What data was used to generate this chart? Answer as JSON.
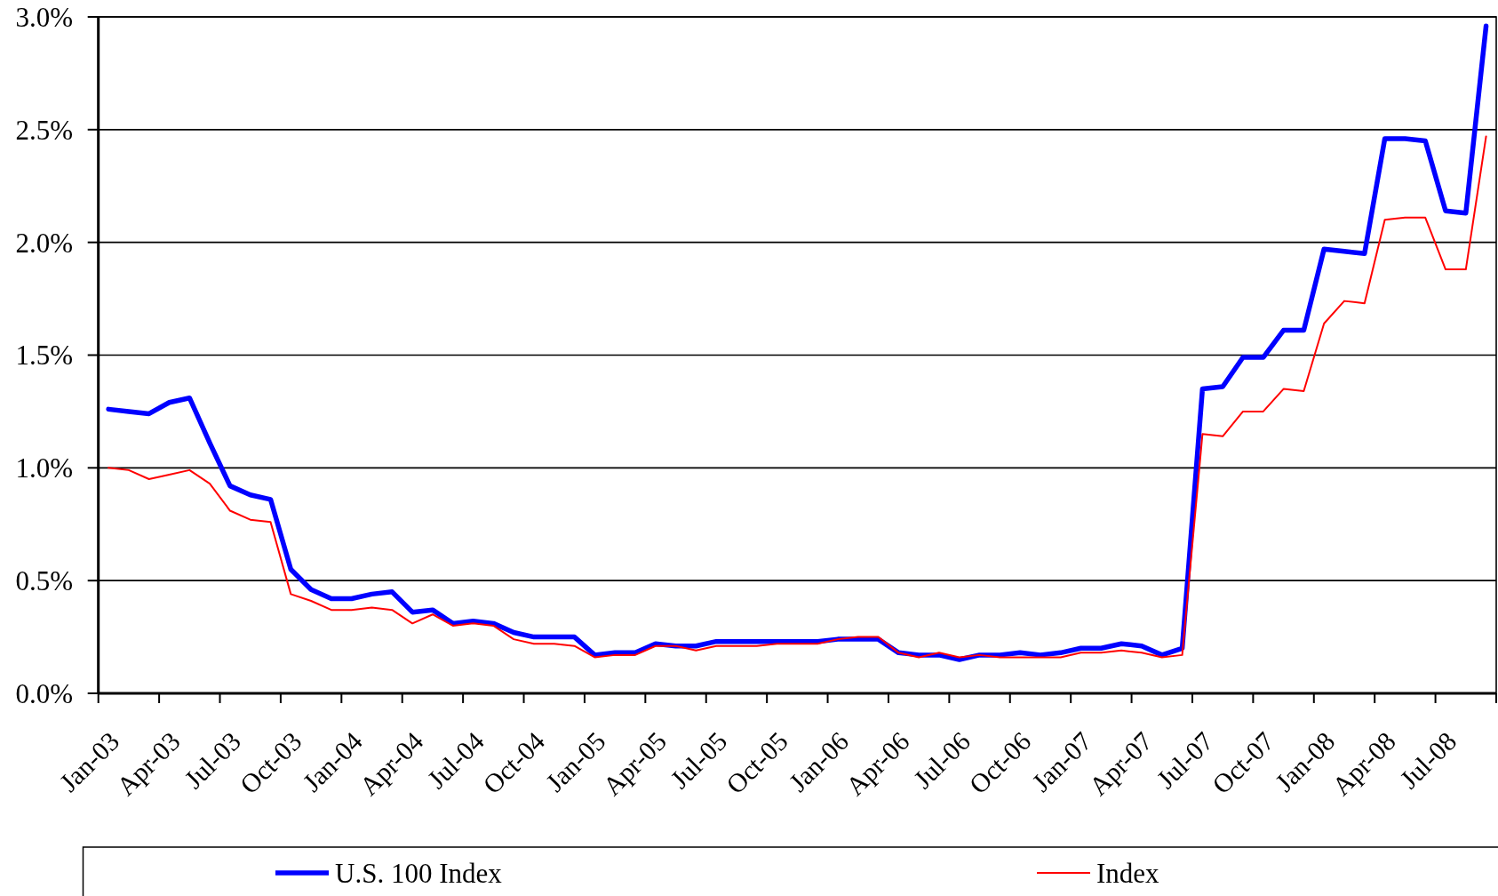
{
  "chart_data": {
    "type": "line",
    "categories": [
      "Jan-03",
      null,
      null,
      "Apr-03",
      null,
      null,
      "Jul-03",
      null,
      null,
      "Oct-03",
      null,
      null,
      "Jan-04",
      null,
      null,
      "Apr-04",
      null,
      null,
      "Jul-04",
      null,
      null,
      "Oct-04",
      null,
      null,
      "Jan-05",
      null,
      null,
      "Apr-05",
      null,
      null,
      "Jul-05",
      null,
      null,
      "Oct-05",
      null,
      null,
      "Jan-06",
      null,
      null,
      "Apr-06",
      null,
      null,
      "Jul-06",
      null,
      null,
      "Oct-06",
      null,
      null,
      "Jan-07",
      null,
      null,
      "Apr-07",
      null,
      null,
      "Jul-07",
      null,
      null,
      "Oct-07",
      null,
      null,
      "Jan-08",
      null,
      null,
      "Apr-08",
      null,
      null,
      "Jul-08",
      null,
      null
    ],
    "series": [
      {
        "name": "U.S. 100 Index",
        "color": "#0000ff",
        "values": [
          1.26,
          1.25,
          1.24,
          1.29,
          1.31,
          1.11,
          0.92,
          0.88,
          0.86,
          0.55,
          0.46,
          0.42,
          0.42,
          0.44,
          0.45,
          0.36,
          0.37,
          0.31,
          0.32,
          0.31,
          0.27,
          0.25,
          0.25,
          0.25,
          0.17,
          0.18,
          0.18,
          0.22,
          0.21,
          0.21,
          0.23,
          0.23,
          0.23,
          0.23,
          0.23,
          0.23,
          0.24,
          0.24,
          0.24,
          0.18,
          0.17,
          0.17,
          0.15,
          0.17,
          0.17,
          0.18,
          0.17,
          0.18,
          0.2,
          0.2,
          0.22,
          0.21,
          0.17,
          0.2,
          1.35,
          1.36,
          1.49,
          1.49,
          1.61,
          1.61,
          1.97,
          1.96,
          1.95,
          2.46,
          2.46,
          2.45,
          2.14,
          2.13,
          2.96
        ]
      },
      {
        "name": "Index",
        "color": "#ff0000",
        "values": [
          1.0,
          0.99,
          0.95,
          0.97,
          0.99,
          0.93,
          0.81,
          0.77,
          0.76,
          0.44,
          0.41,
          0.37,
          0.37,
          0.38,
          0.37,
          0.31,
          0.35,
          0.3,
          0.31,
          0.3,
          0.24,
          0.22,
          0.22,
          0.21,
          0.16,
          0.17,
          0.17,
          0.21,
          0.21,
          0.19,
          0.21,
          0.21,
          0.21,
          0.22,
          0.22,
          0.22,
          0.24,
          0.25,
          0.25,
          0.18,
          0.16,
          0.18,
          0.16,
          0.17,
          0.16,
          0.16,
          0.16,
          0.16,
          0.18,
          0.18,
          0.19,
          0.18,
          0.16,
          0.17,
          1.15,
          1.14,
          1.25,
          1.25,
          1.35,
          1.34,
          1.64,
          1.74,
          1.73,
          2.1,
          2.11,
          2.11,
          1.88,
          1.88,
          2.47
        ]
      }
    ],
    "ylim": [
      0,
      3
    ],
    "yticks": [
      {
        "value": 0,
        "label": "0.0%"
      },
      {
        "value": 0.5,
        "label": "0.5%"
      },
      {
        "value": 1,
        "label": "1.0%"
      },
      {
        "value": 1.5,
        "label": "1.5%"
      },
      {
        "value": 2,
        "label": "2.0%"
      },
      {
        "value": 2.5,
        "label": "2.5%"
      },
      {
        "value": 3,
        "label": "3.0%"
      }
    ],
    "grid": "y",
    "legend": "bottom"
  }
}
